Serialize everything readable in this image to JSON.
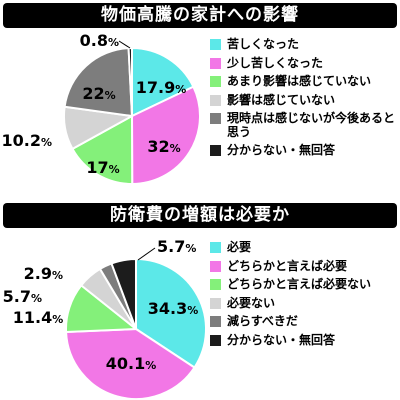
{
  "colors": [
    "#5ce8e8",
    "#f277e6",
    "#84f07a",
    "#d4d4d4",
    "#7d7d7d",
    "#1c1c1c"
  ],
  "chart_data": [
    {
      "type": "pie",
      "title": "物価高騰の家計への影響",
      "categories": [
        "苦しくなった",
        "少し苦しくなった",
        "あまり影響は感じていない",
        "影響は感じていない",
        "現時点は感じないが今後あると思う",
        "分からない・無回答"
      ],
      "values": [
        17.9,
        32,
        17,
        10.2,
        22,
        0.8
      ],
      "labels": [
        "17.9%",
        "32%",
        "17%",
        "10.2%",
        "22%",
        "0.8%"
      ],
      "legend_placement": "right"
    },
    {
      "type": "pie",
      "title": "防衛費の増額は必要か",
      "categories": [
        "必要",
        "どちらかと言えば必要",
        "どちらかと言えば必要ない",
        "必要ない",
        "減らすべきだ",
        "分からない・無回答"
      ],
      "values": [
        34.3,
        40.1,
        11.4,
        5.7,
        2.9,
        5.7
      ],
      "labels": [
        "34.3%",
        "40.1%",
        "11.4%",
        "5.7%",
        "2.9%",
        "5.7%"
      ],
      "legend_placement": "right"
    }
  ]
}
